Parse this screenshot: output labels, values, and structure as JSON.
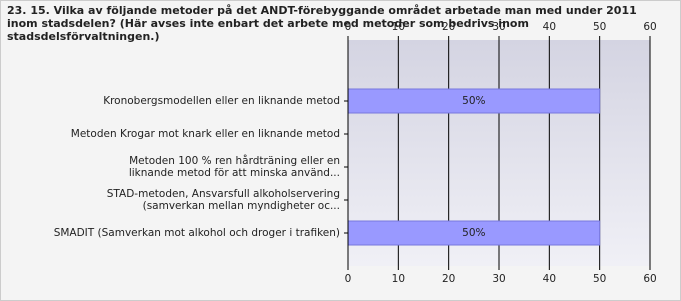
{
  "chart_data": {
    "type": "bar",
    "orientation": "horizontal",
    "title": "23. 15. Vilka av följande metoder på det ANDT-förebyggande området arbetade man med under 2011 inom stadsdelen? (Här avses inte enbart det arbete med metoder som bedrivs inom stadsdelsförvaltningen.)",
    "categories": [
      "Kronobergsmodellen eller en liknande metod",
      "Metoden Krogar mot knark eller en liknande metod",
      "Metoden 100 % ren hårdträning eller en\nliknande metod för att minska använd...",
      "STAD-metoden, Ansvarsfull alkoholservering\n(samverkan mellan myndigheter oc...",
      "SMADIT (Samverkan mot alkohol och droger i trafiken)"
    ],
    "values": [
      50,
      0,
      0,
      0,
      50
    ],
    "value_labels": [
      "50%",
      null,
      null,
      null,
      "50%"
    ],
    "color": "#9999ff",
    "xlim": [
      0,
      60
    ],
    "xticks": [
      0,
      10,
      20,
      30,
      40,
      50,
      60
    ],
    "grid": true
  }
}
